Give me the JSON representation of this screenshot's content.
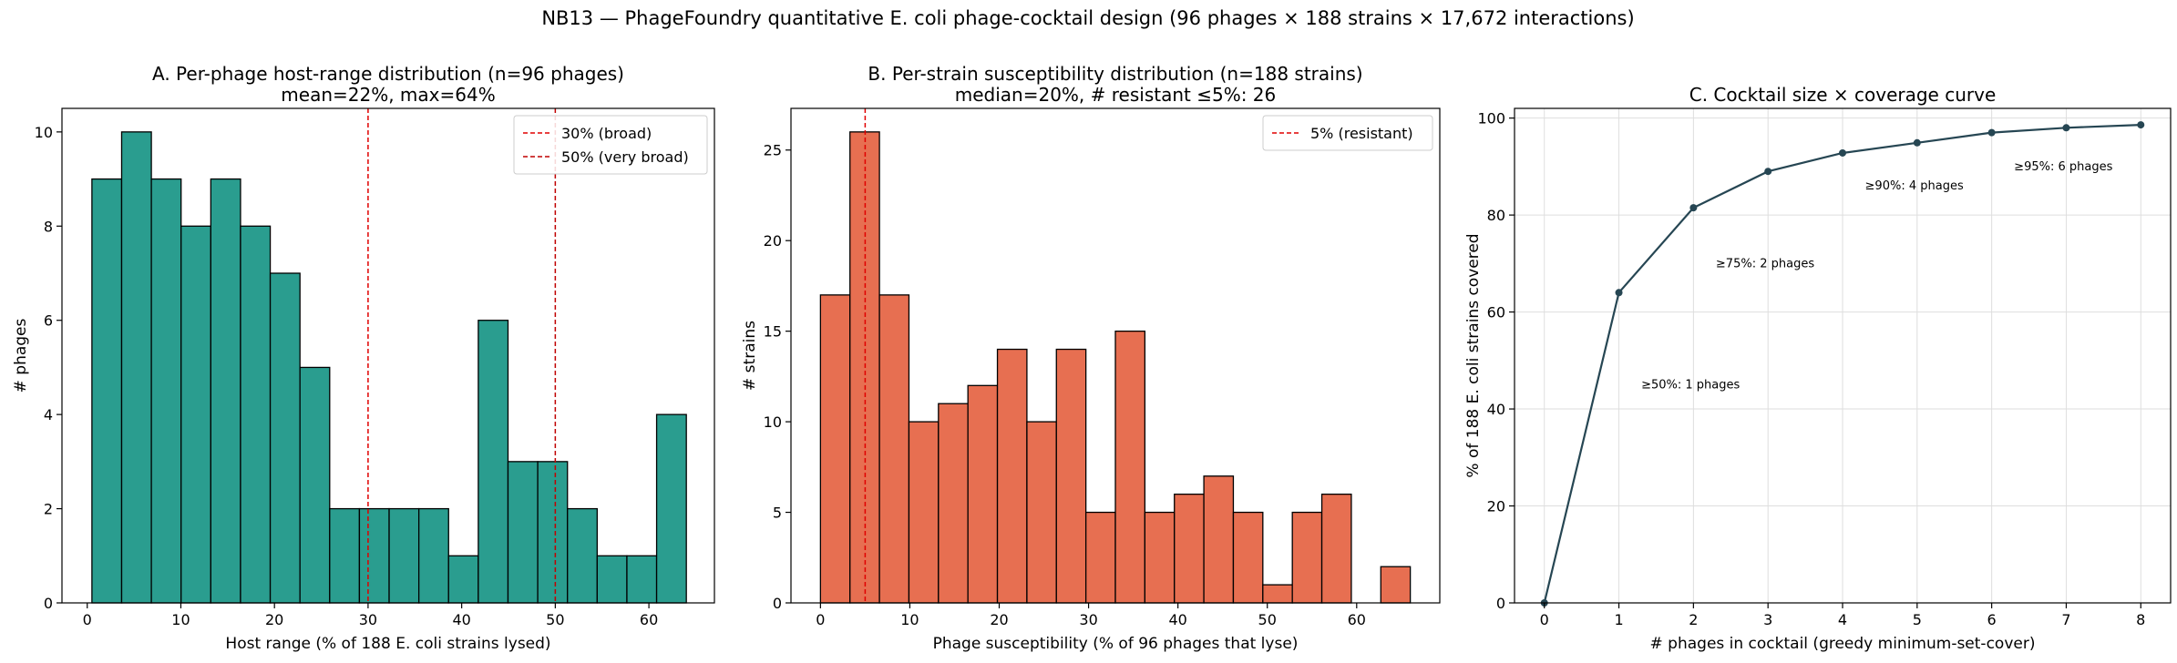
{
  "figure": {
    "suptitle": "NB13 — PhageFoundry quantitative E. coli phage-cocktail design (96 phages × 188 strains × 17,672 interactions)"
  },
  "chart_data": [
    {
      "id": "A",
      "type": "bar",
      "title": "A. Per-phage host-range distribution (n=96 phages)",
      "subtitle": "mean=22%, max=64%",
      "xlabel": "Host range (% of 188 E. coli strains lysed)",
      "ylabel": "# phages",
      "xlim": [
        -2.7,
        67
      ],
      "ylim": [
        0,
        10.5
      ],
      "xticks": [
        0,
        10,
        20,
        30,
        40,
        50,
        60
      ],
      "yticks": [
        0,
        2,
        4,
        6,
        8,
        10
      ],
      "bin_edges": [
        0.5,
        3.675,
        6.85,
        10.025,
        13.2,
        16.375,
        19.55,
        22.725,
        25.9,
        29.075,
        32.25,
        35.425,
        38.6,
        41.775,
        44.95,
        48.125,
        51.3,
        54.475,
        57.65,
        60.825,
        64.0
      ],
      "values": [
        9,
        10,
        9,
        8,
        9,
        8,
        7,
        5,
        2,
        2,
        2,
        2,
        1,
        6,
        3,
        3,
        2,
        1,
        1,
        4
      ],
      "color": "#2a9d8f",
      "vlines": [
        {
          "x": 30,
          "label": "30% (broad)",
          "color": "#e00000"
        },
        {
          "x": 50,
          "label": "50% (very broad)",
          "color": "#c00000"
        }
      ],
      "legend_loc": "upper right"
    },
    {
      "id": "B",
      "type": "bar",
      "title": "B. Per-strain susceptibility distribution (n=188 strains)",
      "subtitle": "median=20%, # resistant ≤5%: 26",
      "xlabel": "Phage susceptibility (% of 96 phages that lyse)",
      "ylabel": "# strains",
      "xlim": [
        -3.3,
        69.3
      ],
      "ylim": [
        0,
        27.3
      ],
      "xticks": [
        0,
        10,
        20,
        30,
        40,
        50,
        60
      ],
      "yticks": [
        0,
        5,
        10,
        15,
        20,
        25
      ],
      "bin_edges": [
        0,
        3.3,
        6.6,
        9.9,
        13.2,
        16.5,
        19.8,
        23.1,
        26.4,
        29.7,
        33.0,
        36.3,
        39.6,
        42.9,
        46.2,
        49.5,
        52.8,
        56.1,
        59.4,
        62.7,
        66.0
      ],
      "values": [
        17,
        26,
        17,
        10,
        11,
        12,
        14,
        10,
        14,
        5,
        15,
        5,
        6,
        7,
        5,
        1,
        5,
        6,
        0,
        2
      ],
      "color": "#e76f51",
      "vlines": [
        {
          "x": 5,
          "label": "5% (resistant)",
          "color": "#e00000"
        }
      ],
      "legend_loc": "upper right"
    },
    {
      "id": "C",
      "type": "line",
      "title": "C. Cocktail size × coverage curve",
      "xlabel": "# phages in cocktail (greedy minimum-set-cover)",
      "ylabel": "% of 188 E. coli strains covered",
      "xlim": [
        -0.4,
        8.4
      ],
      "ylim": [
        0,
        102
      ],
      "xticks": [
        0,
        1,
        2,
        3,
        4,
        5,
        6,
        7,
        8
      ],
      "yticks": [
        0,
        20,
        40,
        60,
        80,
        100
      ],
      "x": [
        0,
        1,
        2,
        3,
        4,
        5,
        6,
        7,
        8
      ],
      "y": [
        0,
        64,
        81.5,
        89,
        92.8,
        94.9,
        97,
        98,
        98.6
      ],
      "color": "#264653",
      "grid": true,
      "annotations": [
        {
          "text": "≥50%: 1 phages",
          "x": 1.3,
          "y": 45
        },
        {
          "text": "≥75%: 2 phages",
          "x": 2.3,
          "y": 70
        },
        {
          "text": "≥90%: 4 phages",
          "x": 4.3,
          "y": 86
        },
        {
          "text": "≥95%: 6 phages",
          "x": 6.3,
          "y": 90
        }
      ]
    }
  ]
}
